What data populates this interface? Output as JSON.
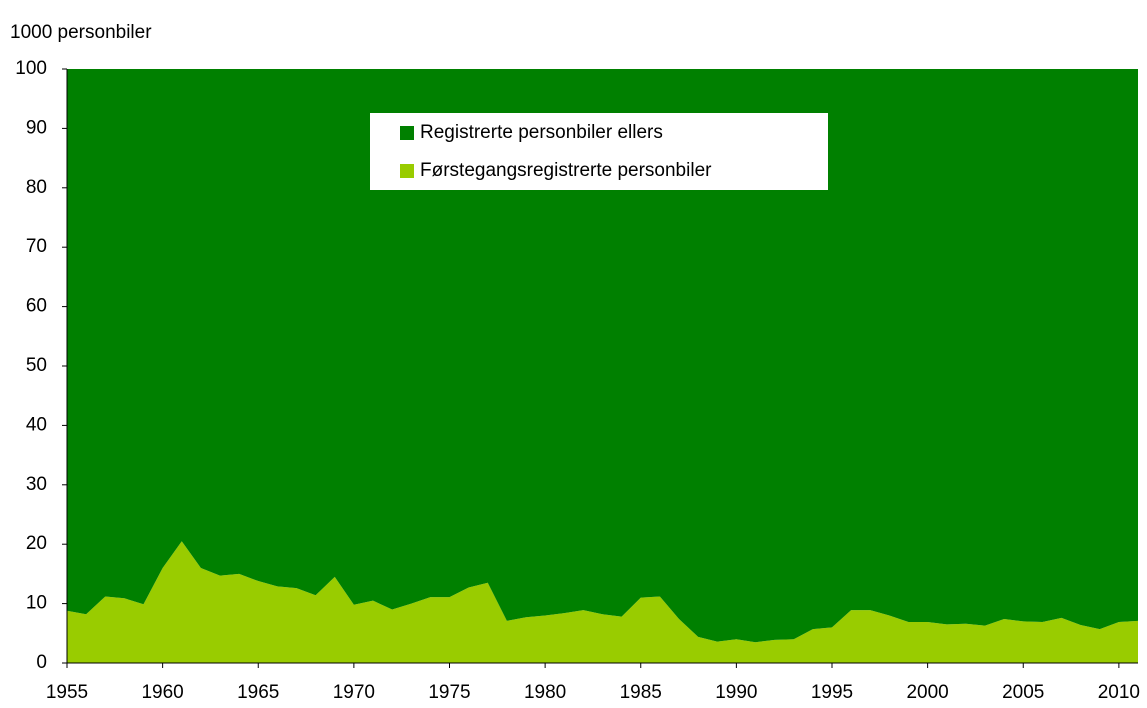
{
  "chart_data": {
    "type": "stacked_area",
    "y_label": "1000 personbiler",
    "x": [
      1955,
      1956,
      1957,
      1958,
      1959,
      1960,
      1961,
      1962,
      1963,
      1964,
      1965,
      1966,
      1967,
      1968,
      1969,
      1970,
      1971,
      1972,
      1973,
      1974,
      1975,
      1976,
      1977,
      1978,
      1979,
      1980,
      1981,
      1982,
      1983,
      1984,
      1985,
      1986,
      1987,
      1988,
      1989,
      1990,
      1991,
      1992,
      1993,
      1994,
      1995,
      1996,
      1997,
      1998,
      1999,
      2000,
      2001,
      2002,
      2003,
      2004,
      2005,
      2006,
      2007,
      2008,
      2009,
      2010,
      2011
    ],
    "series": [
      {
        "name": "Registrerte personbiler ellers",
        "color": "#008000",
        "values": [
          91.2,
          91.8,
          88.8,
          89.1,
          90.1,
          84.0,
          79.5,
          84.0,
          85.3,
          85.0,
          86.2,
          87.1,
          87.4,
          88.6,
          85.5,
          90.2,
          89.5,
          91.0,
          90.0,
          88.9,
          88.9,
          87.3,
          86.5,
          92.9,
          92.3,
          92.0,
          91.6,
          91.1,
          91.8,
          92.2,
          89.0,
          88.8,
          92.6,
          95.6,
          96.4,
          96.0,
          96.5,
          96.1,
          96.0,
          94.3,
          94.0,
          91.1,
          91.1,
          92.0,
          93.1,
          93.1,
          93.5,
          93.4,
          93.7,
          92.6,
          93.0,
          93.1,
          92.4,
          93.6,
          94.3,
          93.1,
          92.9
        ]
      },
      {
        "name": "Førstegangsregistrerte personbiler",
        "color": "#99cc00",
        "values": [
          8.8,
          8.2,
          11.2,
          10.9,
          9.9,
          16.0,
          20.5,
          16.0,
          14.7,
          15.0,
          13.8,
          12.9,
          12.6,
          11.4,
          14.5,
          9.8,
          10.5,
          9.0,
          10.0,
          11.1,
          11.1,
          12.7,
          13.5,
          7.1,
          7.7,
          8.0,
          8.4,
          8.9,
          8.2,
          7.8,
          11.0,
          11.2,
          7.4,
          4.4,
          3.6,
          4.0,
          3.5,
          3.9,
          4.0,
          5.7,
          6.0,
          8.9,
          8.9,
          8.0,
          6.9,
          6.9,
          6.5,
          6.6,
          6.3,
          7.4,
          7.0,
          6.9,
          7.6,
          6.4,
          5.7,
          6.9,
          7.1
        ]
      }
    ],
    "xlim": [
      1955,
      2011
    ],
    "xticks": [
      1955,
      1960,
      1965,
      1970,
      1975,
      1980,
      1985,
      1990,
      1995,
      2000,
      2005,
      2010
    ],
    "ylim": [
      0,
      100
    ],
    "yticks": [
      0,
      10,
      20,
      30,
      40,
      50,
      60,
      70,
      80,
      90,
      100
    ],
    "grid": false,
    "legend": "top-center"
  }
}
